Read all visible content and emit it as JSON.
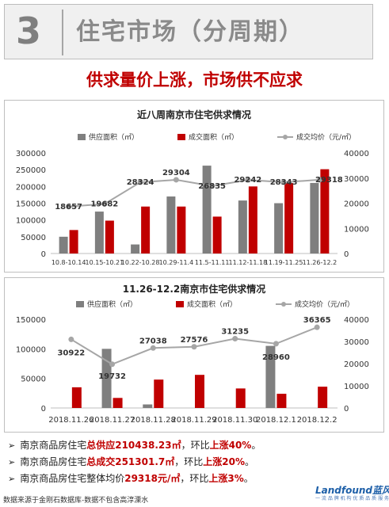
{
  "header": {
    "number": "3",
    "title": "住宅市场（分周期）"
  },
  "headline": "供求量价上涨，市场供不应求",
  "colors": {
    "supply": "#7f7f7f",
    "deal": "#c00000",
    "price": "#a6a6a6",
    "accent": "#c00000"
  },
  "chart_data": [
    {
      "type": "bar",
      "title": "近八周南京市住宅供求情况",
      "categories": [
        "10.8-10.14",
        "10.15-10.21",
        "10.22-10.28",
        "10.29-11.4",
        "11.5-11.11",
        "11.12-11.18",
        "11.19-11.25",
        "11.26-12.2"
      ],
      "series": [
        {
          "name": "供应面积（㎡）",
          "type": "bar",
          "axis": "left",
          "values": [
            50000,
            125000,
            27000,
            170000,
            262000,
            158000,
            150000,
            210438
          ]
        },
        {
          "name": "成交面积（㎡）",
          "type": "bar",
          "axis": "left",
          "values": [
            70000,
            98000,
            140000,
            140000,
            110000,
            200000,
            210000,
            251302
          ]
        },
        {
          "name": "成交均价（元/㎡）",
          "type": "line",
          "axis": "right",
          "values": [
            18657,
            19682,
            28324,
            29304,
            26835,
            29242,
            28343,
            29318
          ],
          "labels": [
            "18657",
            "19682",
            "28324",
            "29304",
            "26835",
            "29242",
            "28343",
            "29318"
          ]
        }
      ],
      "y_left": {
        "min": 0,
        "max": 300000,
        "ticks": [
          0,
          50000,
          100000,
          150000,
          200000,
          250000,
          300000
        ],
        "tick_labels": [
          "0",
          "50000",
          "100000",
          "150000",
          "200000",
          "250000",
          "300000"
        ]
      },
      "y_right": {
        "min": 0,
        "max": 40000,
        "ticks": [
          0,
          10000,
          20000,
          30000,
          40000
        ],
        "tick_labels": [
          "0",
          "10000",
          "20000",
          "30000",
          "40000"
        ]
      },
      "legend": "top"
    },
    {
      "type": "bar",
      "title": "11.26-12.2南京市住宅供求情况",
      "categories": [
        "2018.11.26",
        "2018.11.27",
        "2018.11.28",
        "2018.11.29",
        "2018.11.30",
        "2018.12.1",
        "2018.12.2"
      ],
      "series": [
        {
          "name": "供应面积（㎡）",
          "type": "bar",
          "axis": "left",
          "values": [
            0,
            100000,
            6000,
            0,
            0,
            105000,
            0
          ]
        },
        {
          "name": "成交面积（㎡）",
          "type": "bar",
          "axis": "left",
          "values": [
            35000,
            17000,
            48000,
            56000,
            33000,
            24000,
            36000
          ]
        },
        {
          "name": "成交均价（元/㎡）",
          "type": "line",
          "axis": "right",
          "values": [
            30922,
            19732,
            27038,
            27576,
            31235,
            28960,
            36365
          ],
          "labels": [
            "30922",
            "19732",
            "27038",
            "27576",
            "31235",
            "28960",
            "36365"
          ]
        }
      ],
      "y_left": {
        "min": 0,
        "max": 150000,
        "ticks": [
          0,
          50000,
          100000,
          150000
        ],
        "tick_labels": [
          "0",
          "50000",
          "100000",
          "150000"
        ]
      },
      "y_right": {
        "min": 0,
        "max": 40000,
        "ticks": [
          0,
          10000,
          20000,
          30000,
          40000
        ],
        "tick_labels": [
          "0",
          "10000",
          "20000",
          "30000",
          "40000"
        ]
      },
      "legend": "top"
    }
  ],
  "bullets": [
    {
      "pre": "南京商品房住宅",
      "hl1": "总供应210438.23㎡",
      "mid": "，环比",
      "hl2": "上涨40%",
      "post": "。"
    },
    {
      "pre": "南京商品房住宅",
      "hl1": "总成交251301.7㎡",
      "mid": "，环比",
      "hl2": "上涨20%",
      "post": "。"
    },
    {
      "pre": "南京商品房住宅整体均价",
      "hl1": "29318元/㎡",
      "mid": "，环比",
      "hl2": "上涨3%",
      "post": "。"
    }
  ],
  "footer": {
    "note": "数据来源于金刚石数据库-数据不包含高淳溧水"
  },
  "logo": {
    "name": "Landfound蓝风",
    "tagline": "一 流 品 牌 机 构 优 质 品 质 服 务"
  }
}
